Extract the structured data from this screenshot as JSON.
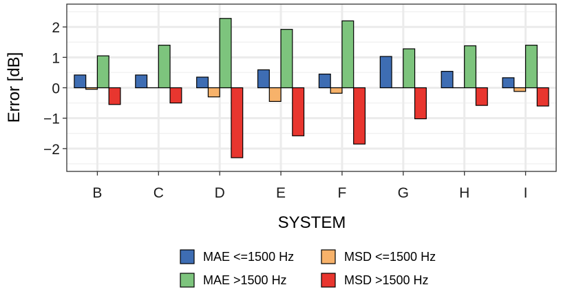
{
  "chart_data": {
    "type": "bar",
    "title": "",
    "xlabel": "SYSTEM",
    "ylabel": "Error [dB]",
    "ylim": [
      -2.75,
      2.75
    ],
    "yticks": [
      2,
      1,
      0,
      -1,
      -2
    ],
    "ytick_labels": [
      "2",
      "1",
      "0",
      "−1",
      "−2"
    ],
    "grid": true,
    "legend_position": "bottom",
    "categories": [
      "B",
      "C",
      "D",
      "E",
      "F",
      "G",
      "H",
      "I"
    ],
    "series": [
      {
        "name": "MAE <=1500 Hz",
        "color": "#3e6db3",
        "values": [
          0.42,
          0.42,
          0.35,
          0.59,
          0.45,
          1.03,
          0.54,
          0.33
        ]
      },
      {
        "name": "MSD <=1500 Hz",
        "color": "#f7b26a",
        "values": [
          -0.05,
          0.0,
          -0.3,
          -0.45,
          -0.18,
          0.0,
          0.0,
          -0.12
        ]
      },
      {
        "name": "MAE >1500 Hz",
        "color": "#7dc47d",
        "values": [
          1.05,
          1.4,
          2.28,
          1.92,
          2.2,
          1.28,
          1.38,
          1.4
        ]
      },
      {
        "name": "MSD >1500 Hz",
        "color": "#e8362f",
        "values": [
          -0.55,
          -0.5,
          -2.3,
          -1.58,
          -1.85,
          -1.02,
          -0.58,
          -0.6
        ]
      }
    ],
    "legend": [
      [
        "MAE <=1500 Hz",
        "MSD <=1500 Hz"
      ],
      [
        "MAE >1500 Hz",
        "MSD >1500 Hz"
      ]
    ]
  }
}
